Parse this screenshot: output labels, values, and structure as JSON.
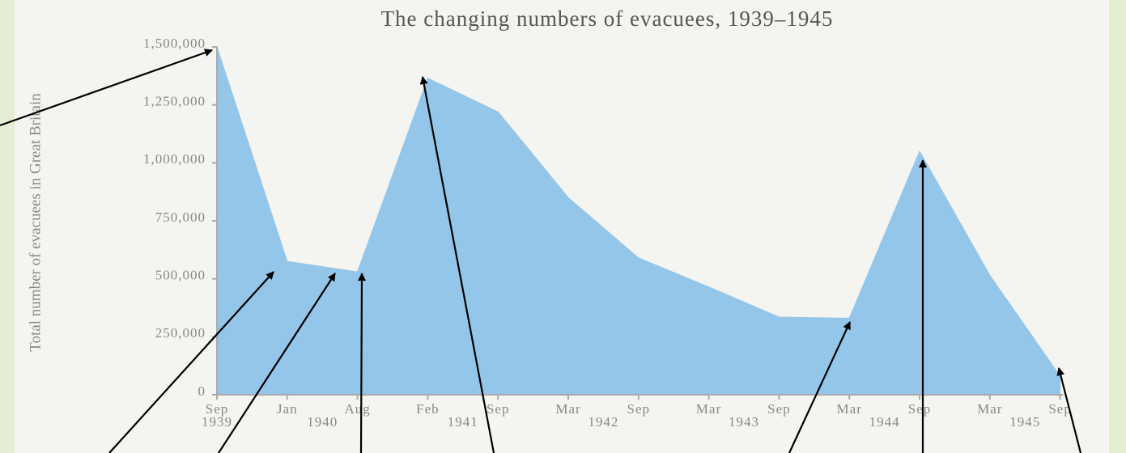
{
  "chart_data": {
    "type": "area",
    "title": "The changing numbers of evacuees, 1939–1945",
    "y_label": "Total number of evacuees in Great Britain",
    "categories": [
      "Sep",
      "Jan",
      "Aug",
      "Feb",
      "Sep",
      "Mar",
      "Sep",
      "Mar",
      "Sep",
      "Mar",
      "Sep",
      "Mar",
      "Sep"
    ],
    "years": [
      "1939",
      "1940",
      "1941",
      "1942",
      "1943",
      "1944",
      "1945"
    ],
    "values": [
      1500000,
      575000,
      530000,
      1365000,
      1220000,
      850000,
      590000,
      465000,
      335000,
      330000,
      1050000,
      515000,
      80000
    ],
    "color": "#93c6e8",
    "ylim": [
      0,
      1500000
    ],
    "yticks": [
      0,
      {
        "value": 250000,
        "label": "250,000"
      },
      {
        "value": 500000,
        "label": "500,000"
      },
      {
        "value": 750000,
        "label": "750,000"
      },
      {
        "value": 1000000,
        "label": "1,000,000"
      },
      {
        "value": 1250000,
        "label": "1,250,000"
      },
      {
        "value": 1500000,
        "label": "1,500,000"
      }
    ]
  }
}
